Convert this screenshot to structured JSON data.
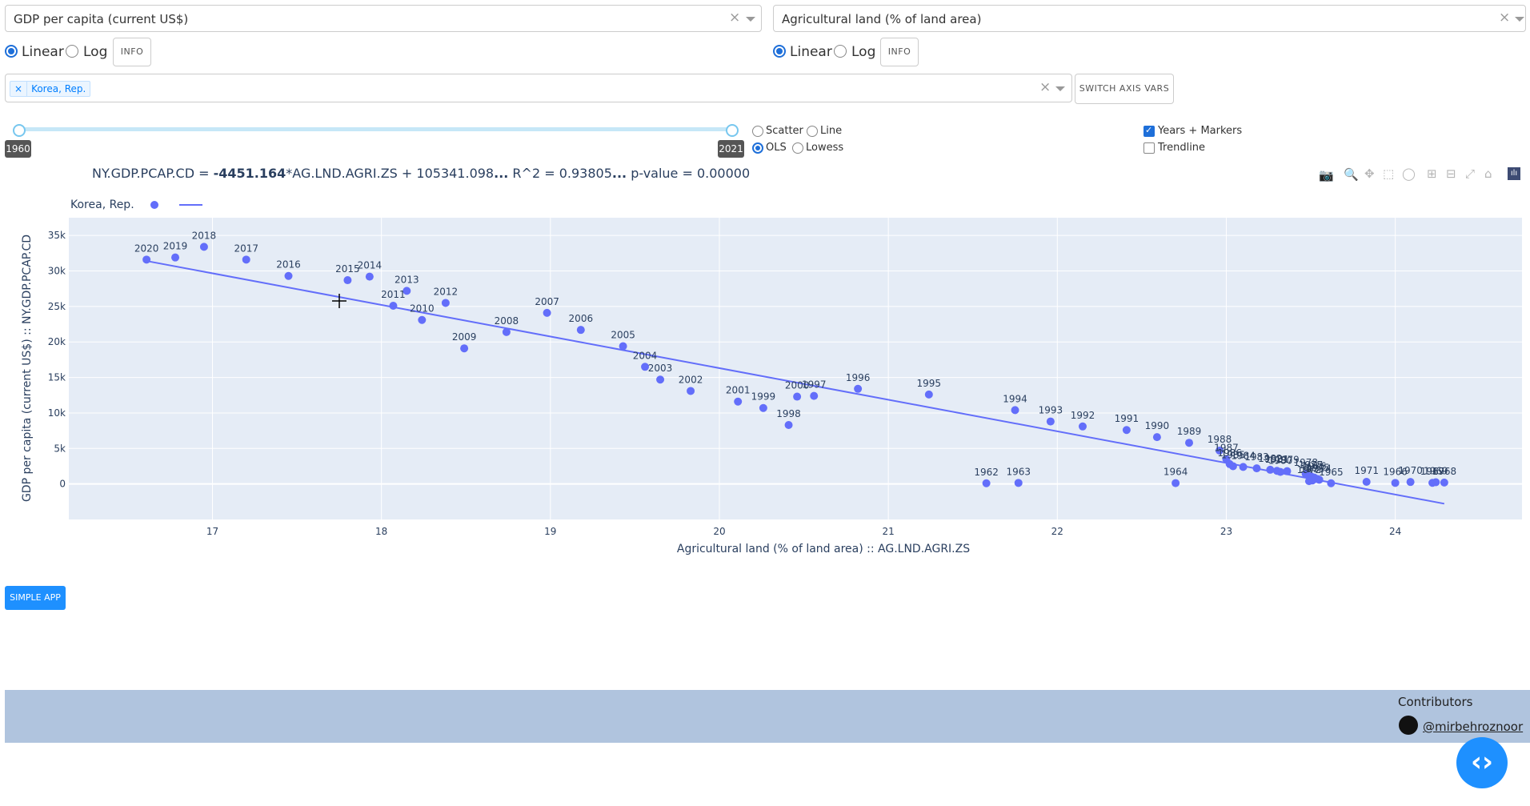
{
  "xvar": {
    "selected": "GDP per capita (current US$)",
    "scale_options": [
      "Linear",
      "Log"
    ],
    "scale_selected": "Linear",
    "info_label": "INFO"
  },
  "yvar": {
    "selected": "Agricultural land (% of land area)",
    "scale_options": [
      "Linear",
      "Log"
    ],
    "scale_selected": "Linear",
    "info_label": "INFO"
  },
  "country_filter": {
    "tags": [
      "Korea, Rep."
    ]
  },
  "switch_button": "SWITCH AXIS VARS",
  "year_slider": {
    "min": 1960,
    "max": 2021,
    "start": 1960,
    "end": 2021
  },
  "plot_type": {
    "options": [
      "Scatter",
      "Line"
    ],
    "selected": "Scatter"
  },
  "fit_type": {
    "options": [
      "OLS",
      "Lowess"
    ],
    "selected": "OLS"
  },
  "display_options": {
    "years_markers": {
      "label": "Years + Markers",
      "checked": true
    },
    "trendline": {
      "label": "Trendline",
      "checked": false
    }
  },
  "equation": {
    "prefix": "NY.GDP.PCAP.CD = ",
    "slope": "-4451.164",
    "middle": "*AG.LND.AGRI.ZS + 105341.098",
    "ellipsis1": "...",
    "r2": " R^2 = 0.93805",
    "ellipsis2": "...",
    "pvalue": " p-value = 0.00000"
  },
  "simple_app_button": "SIMPLE APP",
  "footer": {
    "contributors_label": "Contributors",
    "user": "@mirbehroznoor"
  },
  "modebar_icons": [
    "camera-icon",
    "zoom-icon",
    "pan-icon",
    "box-select-icon",
    "lasso-icon",
    "zoom-in-icon",
    "zoom-out-icon",
    "autoscale-icon",
    "reset-axes-icon",
    "plotly-logo-icon"
  ],
  "colors": {
    "marker": "#636efa",
    "plot_bg": "#e5ecf6",
    "footer_bg": "#b0c4de",
    "accent": "#1e90ff"
  },
  "chart_data": {
    "type": "scatter",
    "title": "",
    "xlabel": "Agricultural land (% of land area) :: AG.LND.AGRI.ZS",
    "ylabel": "GDP per capita (current US$) :: NY.GDP.PCAP.CD",
    "xlim": [
      16.15,
      24.75
    ],
    "ylim": [
      -5000,
      37500
    ],
    "xticks": [
      17,
      18,
      19,
      20,
      21,
      22,
      23,
      24
    ],
    "yticks": [
      0,
      5000,
      10000,
      15000,
      20000,
      25000,
      30000,
      35000
    ],
    "ytick_labels": [
      "0",
      "5k",
      "10k",
      "15k",
      "20k",
      "25k",
      "30k",
      "35k"
    ],
    "grid": true,
    "legend": {
      "placement": "top-left",
      "entries": [
        "Korea, Rep."
      ]
    },
    "series": [
      {
        "name": "Korea, Rep.",
        "points": [
          {
            "year": "2020",
            "x": 16.61,
            "y": 31600
          },
          {
            "year": "2019",
            "x": 16.78,
            "y": 31900
          },
          {
            "year": "2018",
            "x": 16.95,
            "y": 33400
          },
          {
            "year": "2017",
            "x": 17.2,
            "y": 31600
          },
          {
            "year": "2016",
            "x": 17.45,
            "y": 29300
          },
          {
            "year": "2015",
            "x": 17.8,
            "y": 28700
          },
          {
            "year": "2014",
            "x": 17.93,
            "y": 29200
          },
          {
            "year": "2013",
            "x": 18.15,
            "y": 27200
          },
          {
            "year": "2012",
            "x": 18.38,
            "y": 25500
          },
          {
            "year": "2011",
            "x": 18.07,
            "y": 25100
          },
          {
            "year": "2010",
            "x": 18.24,
            "y": 23100
          },
          {
            "year": "2009",
            "x": 18.49,
            "y": 19100
          },
          {
            "year": "2008",
            "x": 18.74,
            "y": 21400
          },
          {
            "year": "2007",
            "x": 18.98,
            "y": 24100
          },
          {
            "year": "2006",
            "x": 19.18,
            "y": 21700
          },
          {
            "year": "2005",
            "x": 19.43,
            "y": 19400
          },
          {
            "year": "2004",
            "x": 19.56,
            "y": 16500
          },
          {
            "year": "2003",
            "x": 19.65,
            "y": 14700
          },
          {
            "year": "2002",
            "x": 19.83,
            "y": 13100
          },
          {
            "year": "2001",
            "x": 20.11,
            "y": 11600
          },
          {
            "year": "2000",
            "x": 20.46,
            "y": 12300
          },
          {
            "year": "1999",
            "x": 20.26,
            "y": 10700
          },
          {
            "year": "1998",
            "x": 20.41,
            "y": 8300
          },
          {
            "year": "1997",
            "x": 20.56,
            "y": 12400
          },
          {
            "year": "1996",
            "x": 20.82,
            "y": 13400
          },
          {
            "year": "1995",
            "x": 21.24,
            "y": 12600
          },
          {
            "year": "1994",
            "x": 21.75,
            "y": 10400
          },
          {
            "year": "1993",
            "x": 21.96,
            "y": 8800
          },
          {
            "year": "1992",
            "x": 22.15,
            "y": 8100
          },
          {
            "year": "1991",
            "x": 22.41,
            "y": 7600
          },
          {
            "year": "1990",
            "x": 22.59,
            "y": 6600
          },
          {
            "year": "1989",
            "x": 22.78,
            "y": 5800
          },
          {
            "year": "1988",
            "x": 22.96,
            "y": 4700
          },
          {
            "year": "1987",
            "x": 23.0,
            "y": 3500
          },
          {
            "year": "1986",
            "x": 23.02,
            "y": 2800
          },
          {
            "year": "1985",
            "x": 23.04,
            "y": 2500
          },
          {
            "year": "1984",
            "x": 23.1,
            "y": 2400
          },
          {
            "year": "1983",
            "x": 23.18,
            "y": 2200
          },
          {
            "year": "1982",
            "x": 23.26,
            "y": 2000
          },
          {
            "year": "1981",
            "x": 23.3,
            "y": 1850
          },
          {
            "year": "1980",
            "x": 23.32,
            "y": 1700
          },
          {
            "year": "1979",
            "x": 23.36,
            "y": 1800
          },
          {
            "year": "1978",
            "x": 23.47,
            "y": 1400
          },
          {
            "year": "1977",
            "x": 23.5,
            "y": 1100
          },
          {
            "year": "1976",
            "x": 23.52,
            "y": 900
          },
          {
            "year": "1975",
            "x": 23.54,
            "y": 700
          },
          {
            "year": "1974",
            "x": 23.55,
            "y": 600
          },
          {
            "year": "1973",
            "x": 23.51,
            "y": 500
          },
          {
            "year": "1972",
            "x": 23.49,
            "y": 400
          },
          {
            "year": "1965",
            "x": 23.62,
            "y": 100
          },
          {
            "year": "1971",
            "x": 23.83,
            "y": 300
          },
          {
            "year": "1966",
            "x": 24.0,
            "y": 150
          },
          {
            "year": "1970",
            "x": 24.09,
            "y": 280
          },
          {
            "year": "1967",
            "x": 24.22,
            "y": 160
          },
          {
            "year": "1969",
            "x": 24.24,
            "y": 240
          },
          {
            "year": "1968",
            "x": 24.29,
            "y": 200
          },
          {
            "year": "1962",
            "x": 21.58,
            "y": 100
          },
          {
            "year": "1963",
            "x": 21.77,
            "y": 150
          },
          {
            "year": "1964",
            "x": 22.7,
            "y": 120
          }
        ],
        "trendline": {
          "x": [
            16.61,
            24.29
          ],
          "y": [
            31406,
            -2780
          ]
        }
      }
    ]
  }
}
